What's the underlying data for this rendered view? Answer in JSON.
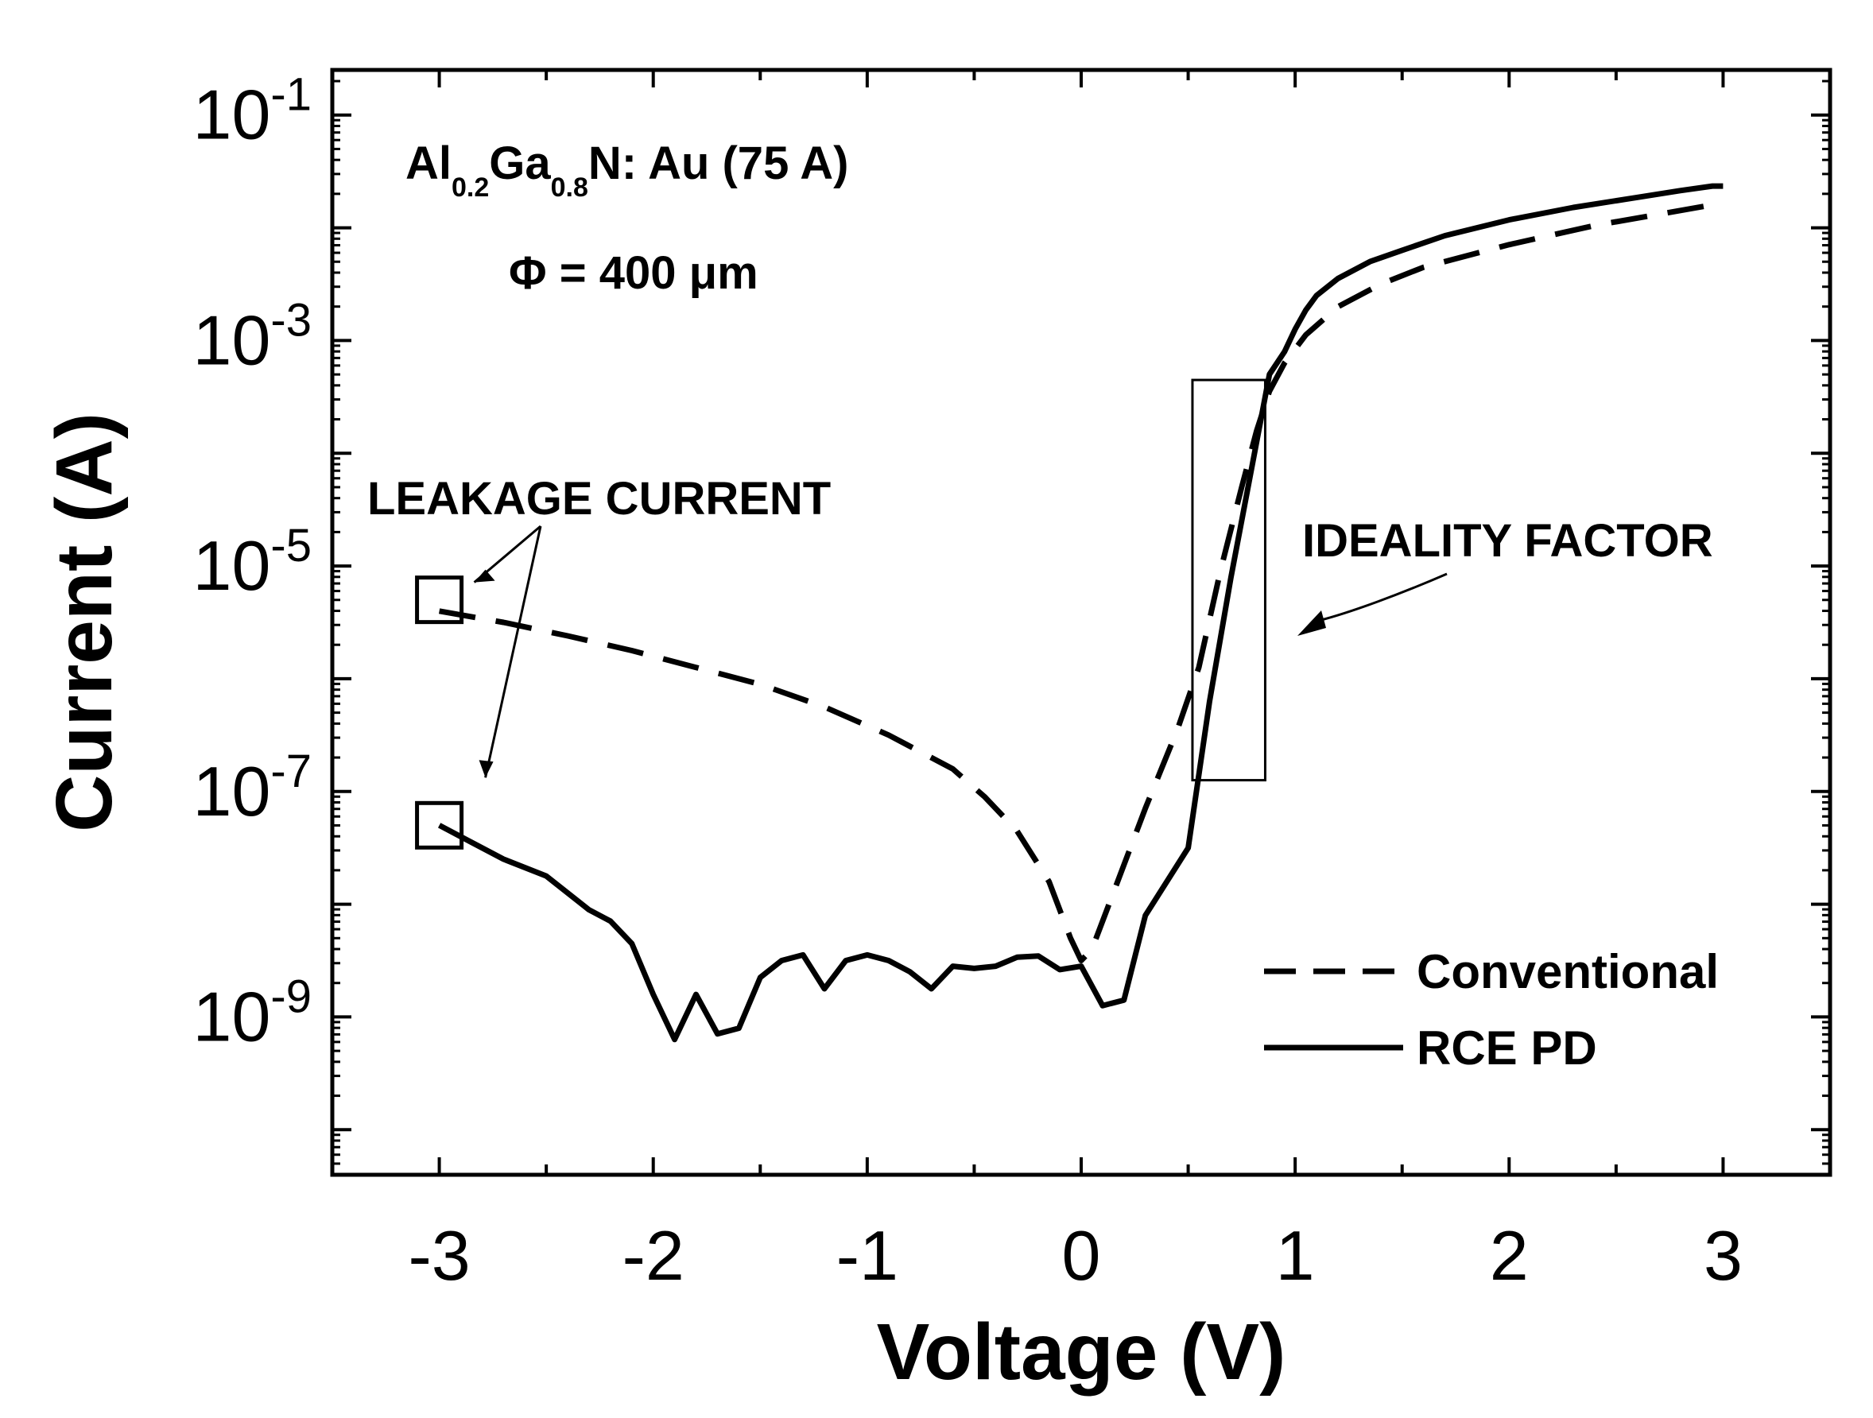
{
  "chart_data": {
    "type": "line",
    "yscale": "log",
    "xlabel": "Voltage (V)",
    "ylabel": "Current (A)",
    "xlim": [
      -3.5,
      3.5
    ],
    "ylim_exp": [
      -10.4,
      -0.6
    ],
    "x_ticks": [
      {
        "value": -3,
        "label": "-3"
      },
      {
        "value": -2,
        "label": "-2"
      },
      {
        "value": -1,
        "label": "-1"
      },
      {
        "value": 0,
        "label": "0"
      },
      {
        "value": 1,
        "label": "1"
      },
      {
        "value": 2,
        "label": "2"
      },
      {
        "value": 3,
        "label": "3"
      }
    ],
    "y_ticks": [
      {
        "exp": -1,
        "base": "10",
        "sup": "-1"
      },
      {
        "exp": -3,
        "base": "10",
        "sup": "-3"
      },
      {
        "exp": -5,
        "base": "10",
        "sup": "-5"
      },
      {
        "exp": -7,
        "base": "10",
        "sup": "-7"
      },
      {
        "exp": -9,
        "base": "10",
        "sup": "-9"
      }
    ],
    "series": [
      {
        "name": "Conventional",
        "style": "dashed",
        "x": [
          -3.0,
          -2.7,
          -2.4,
          -2.1,
          -1.8,
          -1.5,
          -1.2,
          -0.9,
          -0.6,
          -0.45,
          -0.3,
          -0.15,
          -0.05,
          0.0,
          0.05,
          0.15,
          0.3,
          0.45,
          0.55,
          0.65,
          0.75,
          0.82,
          0.88,
          0.95,
          1.05,
          1.2,
          1.4,
          1.6,
          2.0,
          2.4,
          2.7,
          3.0
        ],
        "y_exp": [
          -5.4,
          -5.5,
          -5.62,
          -5.75,
          -5.9,
          -6.05,
          -6.25,
          -6.5,
          -6.8,
          -7.05,
          -7.35,
          -7.8,
          -8.3,
          -8.5,
          -8.4,
          -7.9,
          -7.15,
          -6.45,
          -5.9,
          -5.05,
          -4.3,
          -3.8,
          -3.45,
          -3.2,
          -2.95,
          -2.7,
          -2.5,
          -2.35,
          -2.15,
          -1.98,
          -1.88,
          -1.78
        ]
      },
      {
        "name": "RCE PD",
        "style": "solid",
        "x": [
          -3.0,
          -2.85,
          -2.7,
          -2.5,
          -2.3,
          -2.2,
          -2.1,
          -2.0,
          -1.9,
          -1.8,
          -1.7,
          -1.6,
          -1.5,
          -1.4,
          -1.3,
          -1.2,
          -1.1,
          -1.0,
          -0.9,
          -0.8,
          -0.7,
          -0.6,
          -0.5,
          -0.4,
          -0.3,
          -0.2,
          -0.1,
          0.0,
          0.1,
          0.2,
          0.3,
          0.5,
          0.6,
          0.7,
          0.8,
          0.88,
          0.95,
          1.0,
          1.05,
          1.1,
          1.2,
          1.35,
          1.5,
          1.7,
          2.0,
          2.3,
          2.6,
          2.8,
          2.95,
          3.0
        ],
        "y_exp": [
          -7.3,
          -7.45,
          -7.6,
          -7.75,
          -8.05,
          -8.15,
          -8.35,
          -8.8,
          -9.2,
          -8.8,
          -9.15,
          -9.1,
          -8.65,
          -8.5,
          -8.45,
          -8.75,
          -8.5,
          -8.45,
          -8.5,
          -8.6,
          -8.75,
          -8.55,
          -8.57,
          -8.55,
          -8.47,
          -8.46,
          -8.58,
          -8.55,
          -8.9,
          -8.85,
          -8.1,
          -7.5,
          -6.2,
          -5.1,
          -4.1,
          -3.3,
          -3.1,
          -2.9,
          -2.73,
          -2.6,
          -2.45,
          -2.3,
          -2.2,
          -2.07,
          -1.93,
          -1.82,
          -1.73,
          -1.67,
          -1.63,
          -1.63
        ]
      }
    ],
    "legend": {
      "position": "bottom-right",
      "entries": [
        {
          "label": "Conventional",
          "style": "dashed"
        },
        {
          "label": "RCE PD",
          "style": "solid"
        }
      ]
    },
    "annotations": {
      "material_pre": "Al",
      "material_sub1": "0.2",
      "material_mid": "Ga",
      "material_sub2": "0.8",
      "material_post": "N: Au (75 A)",
      "diameter": "Φ = 400 μm",
      "leakage": "LEAKAGE CURRENT",
      "ideality": "IDEALITY FACTOR"
    },
    "markers": {
      "leakage_boxes": [
        {
          "x": -3.0,
          "y_exp": -5.3
        },
        {
          "x": -3.0,
          "y_exp": -7.3
        }
      ],
      "ideality_box": {
        "x0": 0.52,
        "x1": 0.86,
        "y_exp_top": -3.35,
        "y_exp_bottom": -6.9
      }
    }
  }
}
